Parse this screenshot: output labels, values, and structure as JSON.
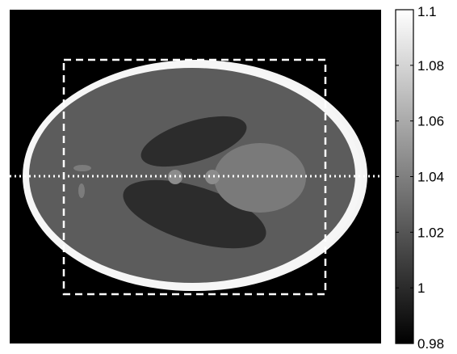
{
  "figure": {
    "kind": "phantom-image-with-colorbar",
    "image_background_color": "#000000",
    "overlays": {
      "dashed_roi": {
        "style": "dashed",
        "color": "#ffffff"
      },
      "dotted_profile_line": {
        "style": "dotted",
        "color": "#ffffff",
        "orientation": "horizontal"
      }
    }
  },
  "colorbar": {
    "min": 0.98,
    "max": 1.1,
    "colormap": "gray",
    "tick_labels": [
      "1.1",
      "1.08",
      "1.06",
      "1.04",
      "1.02",
      "1",
      "0.98"
    ],
    "tick_values": [
      1.1,
      1.08,
      1.06,
      1.04,
      1.02,
      1.0,
      0.98
    ]
  }
}
